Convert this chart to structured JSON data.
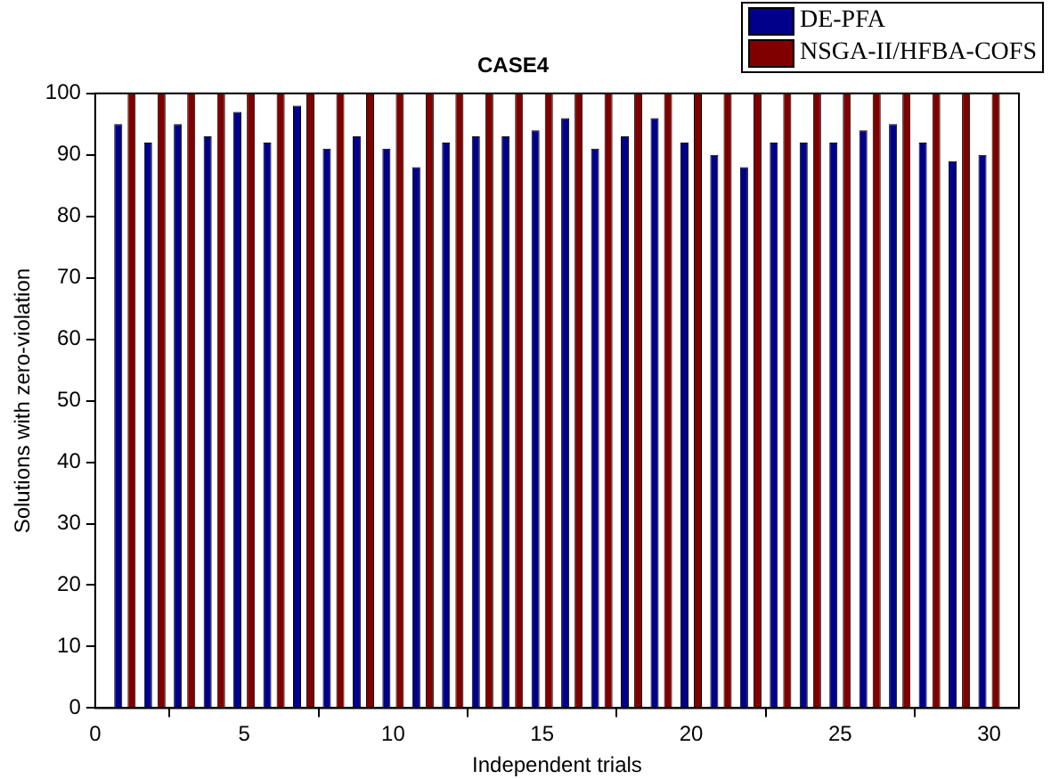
{
  "chart_data": {
    "type": "bar",
    "title": "CASE4",
    "xlabel": "Independent trials",
    "ylabel": "Solutions with zero-violation",
    "x": [
      1,
      2,
      3,
      4,
      5,
      6,
      7,
      8,
      9,
      10,
      11,
      12,
      13,
      14,
      15,
      16,
      17,
      18,
      19,
      20,
      21,
      22,
      23,
      24,
      25,
      26,
      27,
      28,
      29,
      30
    ],
    "series": [
      {
        "name": "DE-PFA",
        "color": "#00008b",
        "values": [
          95,
          92,
          95,
          93,
          97,
          92,
          98,
          91,
          93,
          91,
          88,
          92,
          93,
          93,
          94,
          96,
          91,
          93,
          96,
          92,
          90,
          88,
          92,
          92,
          92,
          94,
          95,
          92,
          89,
          90
        ]
      },
      {
        "name": "NSGA-II/HFBA-COFS",
        "color": "#800000",
        "values": [
          100,
          100,
          100,
          100,
          100,
          100,
          100,
          100,
          100,
          100,
          100,
          100,
          100,
          100,
          100,
          100,
          100,
          100,
          100,
          100,
          100,
          100,
          100,
          100,
          100,
          100,
          100,
          100,
          100,
          100
        ]
      }
    ],
    "xlim": [
      0,
      31
    ],
    "xticks": [
      0,
      5,
      10,
      15,
      20,
      25,
      30
    ],
    "ylim": [
      0,
      100
    ],
    "yticks": [
      0,
      10,
      20,
      30,
      40,
      50,
      60,
      70,
      80,
      90,
      100
    ],
    "grid": false,
    "legend": "top right"
  }
}
